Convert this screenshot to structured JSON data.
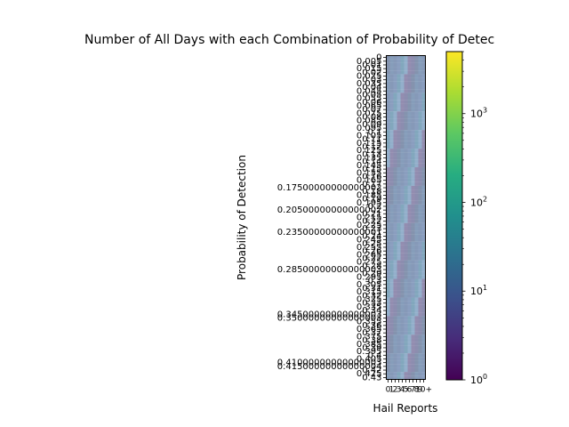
{
  "chart_data": {
    "type": "heatmap",
    "title": "Number of All Days with each Combination of Probability of Detec",
    "xlabel": "Hail Reports",
    "ylabel": "Probability of Detection",
    "y_ticks": [
      "0",
      "0.005",
      "0.01",
      "0.015",
      "0.02",
      "0.025",
      "0.03",
      "0.035",
      "0.04",
      "0.045",
      "0.05",
      "0.055",
      "0.06",
      "0.065",
      "0.07",
      "0.075",
      "0.08",
      "0.085",
      "0.09",
      "0.095",
      "0.1",
      "0.105",
      "0.11",
      "0.115",
      "0.12",
      "0.125",
      "0.13",
      "0.135",
      "0.14",
      "0.145",
      "0.15",
      "0.155",
      "0.16",
      "0.165",
      "0.17",
      "0.17500000000000002",
      "0.18",
      "0.185",
      "0.19",
      "0.195",
      "0.2",
      "0.20500000000000002",
      "0.21",
      "0.215",
      "0.22",
      "0.225",
      "0.23",
      "0.23500000000000001",
      "0.24",
      "0.245",
      "0.25",
      "0.255",
      "0.26",
      "0.265",
      "0.27",
      "0.275",
      "0.28",
      "0.28500000000000003",
      "0.29",
      "0.295",
      "0.3",
      "0.305",
      "0.31",
      "0.315",
      "0.32",
      "0.325",
      "0.33",
      "0.335",
      "0.34",
      "0.34500000000000003",
      "0.35000000000000003",
      "0.355",
      "0.36",
      "0.365",
      "0.37",
      "0.375",
      "0.38",
      "0.385",
      "0.39",
      "0.395",
      "0.4",
      "0.405",
      "0.41000000000000003",
      "0.41500000000000004",
      "0.42",
      "0.425",
      "0.43"
    ],
    "x_ticks": [
      "0",
      "1",
      "2",
      "3",
      "4",
      "5",
      "6",
      "7",
      "8",
      "9",
      "10+"
    ],
    "colorbar": {
      "scale": "log",
      "min": 1,
      "max": 5000,
      "ticks": [
        {
          "base": "10",
          "exp": "0",
          "value": 1
        },
        {
          "base": "10",
          "exp": "1",
          "value": 10
        },
        {
          "base": "10",
          "exp": "2",
          "value": 100
        },
        {
          "base": "10",
          "exp": "3",
          "value": 1000
        }
      ],
      "colormap": "viridis"
    },
    "grid": false
  }
}
